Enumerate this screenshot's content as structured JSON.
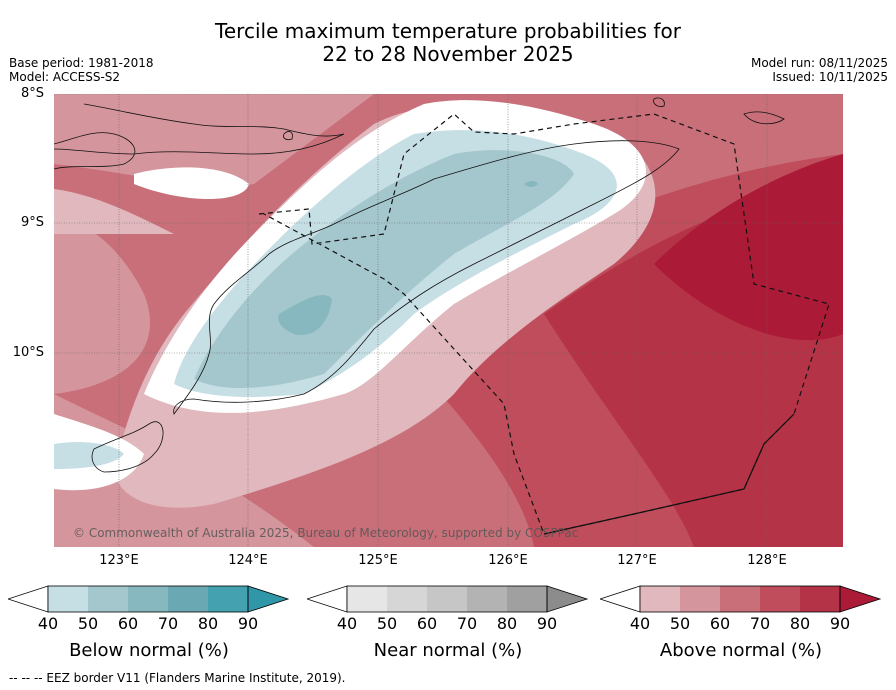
{
  "title": {
    "line1": "Tercile maximum temperature probabilities for",
    "line2": "22 to 28 November 2025"
  },
  "info_left": {
    "base_period": "Base period: 1981-2018",
    "model": "Model: ACCESS-S2"
  },
  "info_right": {
    "model_run": "Model run: 08/11/2025",
    "issued": "Issued: 10/11/2025"
  },
  "map": {
    "lat_labels": [
      "8°S",
      "9°S",
      "10°S"
    ],
    "lon_labels": [
      "123°E",
      "124°E",
      "125°E",
      "126°E",
      "127°E",
      "128°E"
    ],
    "copyright": "© Commonwealth of Australia 2025, Bureau of Meteorology, supported by COSPPac",
    "colors": {
      "above": [
        "#e0b8bd",
        "#d4959c",
        "#c96f79",
        "#bf4d5b",
        "#b53346",
        "#ab1a36"
      ],
      "below": [
        "#c6dfe5",
        "#a4c7cd",
        "#88b8bf",
        "#6aa8b3",
        "#44a1b0",
        "#2f97a8"
      ],
      "near": [
        "#e6e6e6",
        "#d6d6d6",
        "#c6c6c6",
        "#b3b3b3",
        "#a0a0a0",
        "#8c8c8c"
      ]
    }
  },
  "colorbars": [
    {
      "title": "Below normal (%)",
      "ticks": [
        "40",
        "50",
        "60",
        "70",
        "80",
        "90"
      ]
    },
    {
      "title": "Near normal (%)",
      "ticks": [
        "40",
        "50",
        "60",
        "70",
        "80",
        "90"
      ]
    },
    {
      "title": "Above normal (%)",
      "ticks": [
        "40",
        "50",
        "60",
        "70",
        "80",
        "90"
      ]
    }
  ],
  "footnote": "--  --  -- EEZ border V11 (Flanders Marine Institute, 2019)."
}
